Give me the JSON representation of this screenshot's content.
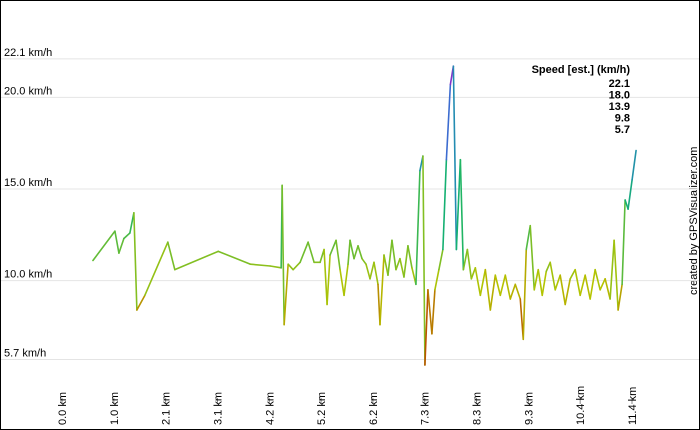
{
  "chart_data": {
    "type": "line",
    "legend_title": "Speed [est.] (km/h)",
    "credit": "created by GPSVisualizer.com",
    "xlim": [
      0,
      12.6
    ],
    "ylim": [
      3.6,
      25.2
    ],
    "grid": true,
    "xticks": [
      {
        "value": 0,
        "label": "0.0 km"
      },
      {
        "value": 1.038,
        "label": "1.0 km"
      },
      {
        "value": 2.076,
        "label": "2.1 km"
      },
      {
        "value": 3.114,
        "label": "3.1 km"
      },
      {
        "value": 4.152,
        "label": "4.2 km"
      },
      {
        "value": 5.19,
        "label": "5.2 km"
      },
      {
        "value": 6.228,
        "label": "6.2 km"
      },
      {
        "value": 7.266,
        "label": "7.3 km"
      },
      {
        "value": 8.304,
        "label": "8.3 km"
      },
      {
        "value": 9.342,
        "label": "9.3 km"
      },
      {
        "value": 10.38,
        "label": "10.4 km"
      },
      {
        "value": 11.418,
        "label": "11.4 km"
      }
    ],
    "yticks": [
      {
        "value": 22.1,
        "label": "22.1 km/h"
      },
      {
        "value": 20,
        "label": "20.0 km/h"
      },
      {
        "value": 15,
        "label": "15.0 km/h"
      },
      {
        "value": 10,
        "label": "10.0 km/h"
      },
      {
        "value": 5.7,
        "label": "5.7 km/h"
      }
    ],
    "color_scale": [
      {
        "value": 22.1,
        "label": "22.1",
        "color": "#9b1fc8"
      },
      {
        "value": 18,
        "label": "18.0",
        "color": "#2a7ad2"
      },
      {
        "value": 13.9,
        "label": "13.9",
        "color": "#14b46c"
      },
      {
        "value": 9.8,
        "label": "9.8",
        "color": "#b5c400"
      },
      {
        "value": 5.7,
        "label": "5.7",
        "color": "#c00000"
      }
    ],
    "x": [
      0.62,
      1.06,
      1.14,
      1.24,
      1.36,
      1.44,
      1.5,
      1.66,
      2.12,
      2.26,
      3.13,
      3.77,
      4.17,
      4.39,
      4.41,
      4.45,
      4.53,
      4.63,
      4.77,
      4.93,
      5.05,
      5.17,
      5.25,
      5.31,
      5.37,
      5.49,
      5.57,
      5.65,
      5.73,
      5.77,
      5.85,
      5.93,
      6.01,
      6.09,
      6.17,
      6.25,
      6.33,
      6.37,
      6.45,
      6.53,
      6.61,
      6.69,
      6.77,
      6.85,
      6.93,
      7.01,
      7.09,
      7.17,
      7.23,
      7.27,
      7.33,
      7.41,
      7.47,
      7.55,
      7.63,
      7.7,
      7.78,
      7.84,
      7.9,
      7.98,
      8.04,
      8.12,
      8.2,
      8.28,
      8.38,
      8.48,
      8.58,
      8.68,
      8.78,
      8.88,
      8.98,
      9.08,
      9.18,
      9.24,
      9.3,
      9.38,
      9.46,
      9.54,
      9.62,
      9.7,
      9.78,
      9.88,
      9.98,
      10.08,
      10.18,
      10.28,
      10.38,
      10.48,
      10.58,
      10.68,
      10.78,
      10.88,
      10.98,
      11.06,
      11.14,
      11.22,
      11.28,
      11.34,
      11.42,
      11.5
    ],
    "values": [
      11.1,
      12.7,
      11.5,
      12.3,
      12.6,
      13.7,
      8.4,
      9.2,
      12.1,
      10.6,
      11.6,
      10.9,
      10.8,
      10.7,
      15.2,
      7.6,
      10.9,
      10.6,
      11.0,
      12.1,
      11.0,
      11.0,
      11.7,
      8.7,
      11.4,
      12.2,
      10.6,
      9.2,
      10.9,
      12.2,
      11.2,
      11.9,
      11.2,
      10.9,
      10.1,
      11.0,
      9.8,
      7.6,
      11.4,
      10.3,
      12.2,
      10.6,
      11.2,
      10.2,
      11.9,
      10.7,
      9.8,
      16.0,
      16.8,
      5.4,
      9.5,
      7.1,
      9.5,
      10.6,
      11.7,
      16.6,
      20.7,
      21.7,
      11.7,
      16.6,
      10.6,
      11.7,
      10.1,
      10.7,
      9.2,
      10.6,
      8.4,
      10.3,
      9.2,
      10.3,
      9.0,
      9.8,
      9.0,
      6.8,
      11.7,
      13.0,
      9.5,
      10.6,
      9.2,
      10.5,
      11.0,
      9.5,
      10.3,
      8.7,
      10.1,
      10.6,
      9.2,
      10.3,
      9.0,
      10.6,
      9.5,
      10.1,
      9.0,
      12.2,
      8.4,
      9.8,
      14.4,
      13.9,
      15.5,
      17.1
    ]
  }
}
